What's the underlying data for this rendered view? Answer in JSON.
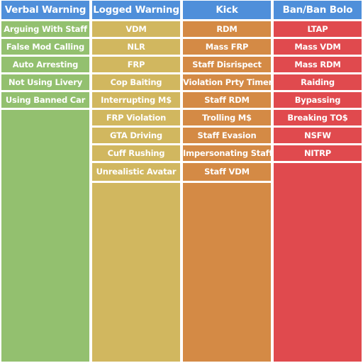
{
  "columns": [
    {
      "title": "Verbal Warning",
      "color": "#93c06f",
      "items": [
        "Arguing With Staff",
        "False Mod Calling",
        "Auto Arresting",
        "Not Using Livery",
        "Using Banned Car"
      ]
    },
    {
      "title": "Logged Warning",
      "color": "#d1b75f",
      "items": [
        "VDM",
        "NLR",
        "FRP",
        "Cop Baiting",
        "Interrupting M$",
        "FRP Violation",
        "GTA Driving",
        "Cuff Rushing",
        "Unrealistic Avatar"
      ]
    },
    {
      "title": "Kick",
      "color": "#d48a45",
      "items": [
        "RDM",
        "Mass FRP",
        "Staff Disrispect",
        "Violation Prty Timer",
        "Staff RDM",
        "Trolling M$",
        "Staff Evasion",
        "Impersonating Staff",
        "Staff VDM"
      ]
    },
    {
      "title": "Ban/Ban Bolo",
      "color": "#e04a4e",
      "items": [
        "LTAP",
        "Mass VDM",
        "Mass RDM",
        "Raiding",
        "Bypassing",
        "Breaking TO$",
        "NSFW",
        "NITRP"
      ]
    }
  ],
  "header_color": "#4f8fda"
}
